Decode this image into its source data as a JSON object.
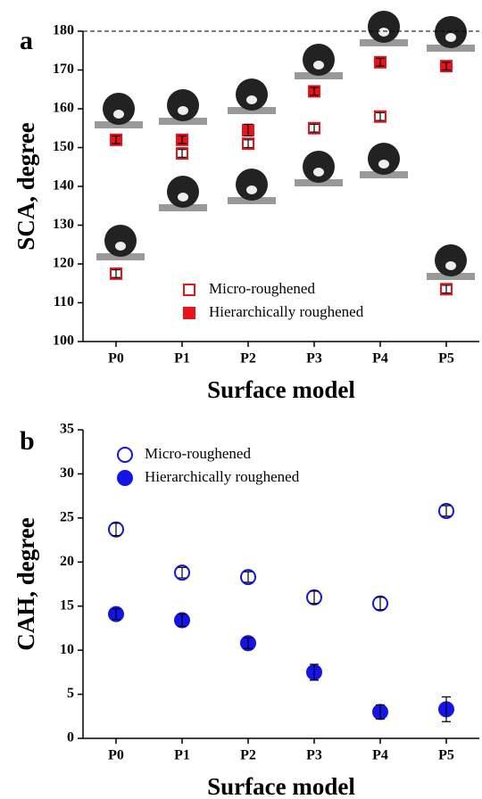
{
  "chart_data": [
    {
      "type": "scatter",
      "label": "a",
      "y_label": "SCA, degree",
      "x_label": "Surface model",
      "categories": [
        "P0",
        "P1",
        "P2",
        "P3",
        "P4",
        "P5"
      ],
      "ylim": [
        100,
        180
      ],
      "yticks": [
        100,
        110,
        120,
        130,
        140,
        150,
        160,
        170,
        180
      ],
      "series": [
        {
          "name": "Micro-roughened",
          "color": "#e8141b",
          "marker": "square",
          "filled": false,
          "values": [
            117.5,
            148.5,
            151,
            155,
            158,
            113.5
          ],
          "errors": [
            1,
            1,
            1,
            1,
            1,
            1
          ]
        },
        {
          "name": "Hierarchically roughened",
          "color": "#e8141b",
          "marker": "square",
          "filled": true,
          "values": [
            152,
            152,
            154.5,
            164.5,
            172,
            171
          ],
          "errors": [
            1,
            1,
            1.5,
            1,
            1,
            1
          ]
        }
      ]
    },
    {
      "type": "scatter",
      "label": "b",
      "y_label": "CAH, degree",
      "x_label": "Surface model",
      "categories": [
        "P0",
        "P1",
        "P2",
        "P3",
        "P4",
        "P5"
      ],
      "ylim": [
        0,
        35
      ],
      "yticks": [
        0,
        5,
        10,
        15,
        20,
        25,
        30,
        35
      ],
      "series": [
        {
          "name": "Micro-roughened",
          "color": "#1414e8",
          "marker": "circle",
          "filled": false,
          "values": [
            23.7,
            18.8,
            18.3,
            16.0,
            15.3,
            25.8
          ],
          "errors": [
            0.7,
            0.6,
            0.6,
            0.7,
            0.7,
            0.6
          ]
        },
        {
          "name": "Hierarchically roughened",
          "color": "#1414e8",
          "marker": "circle",
          "filled": true,
          "values": [
            14.1,
            13.4,
            10.8,
            7.5,
            3.0,
            3.3
          ],
          "errors": [
            0.6,
            0.7,
            0.6,
            0.9,
            0.8,
            1.4
          ]
        }
      ]
    }
  ]
}
